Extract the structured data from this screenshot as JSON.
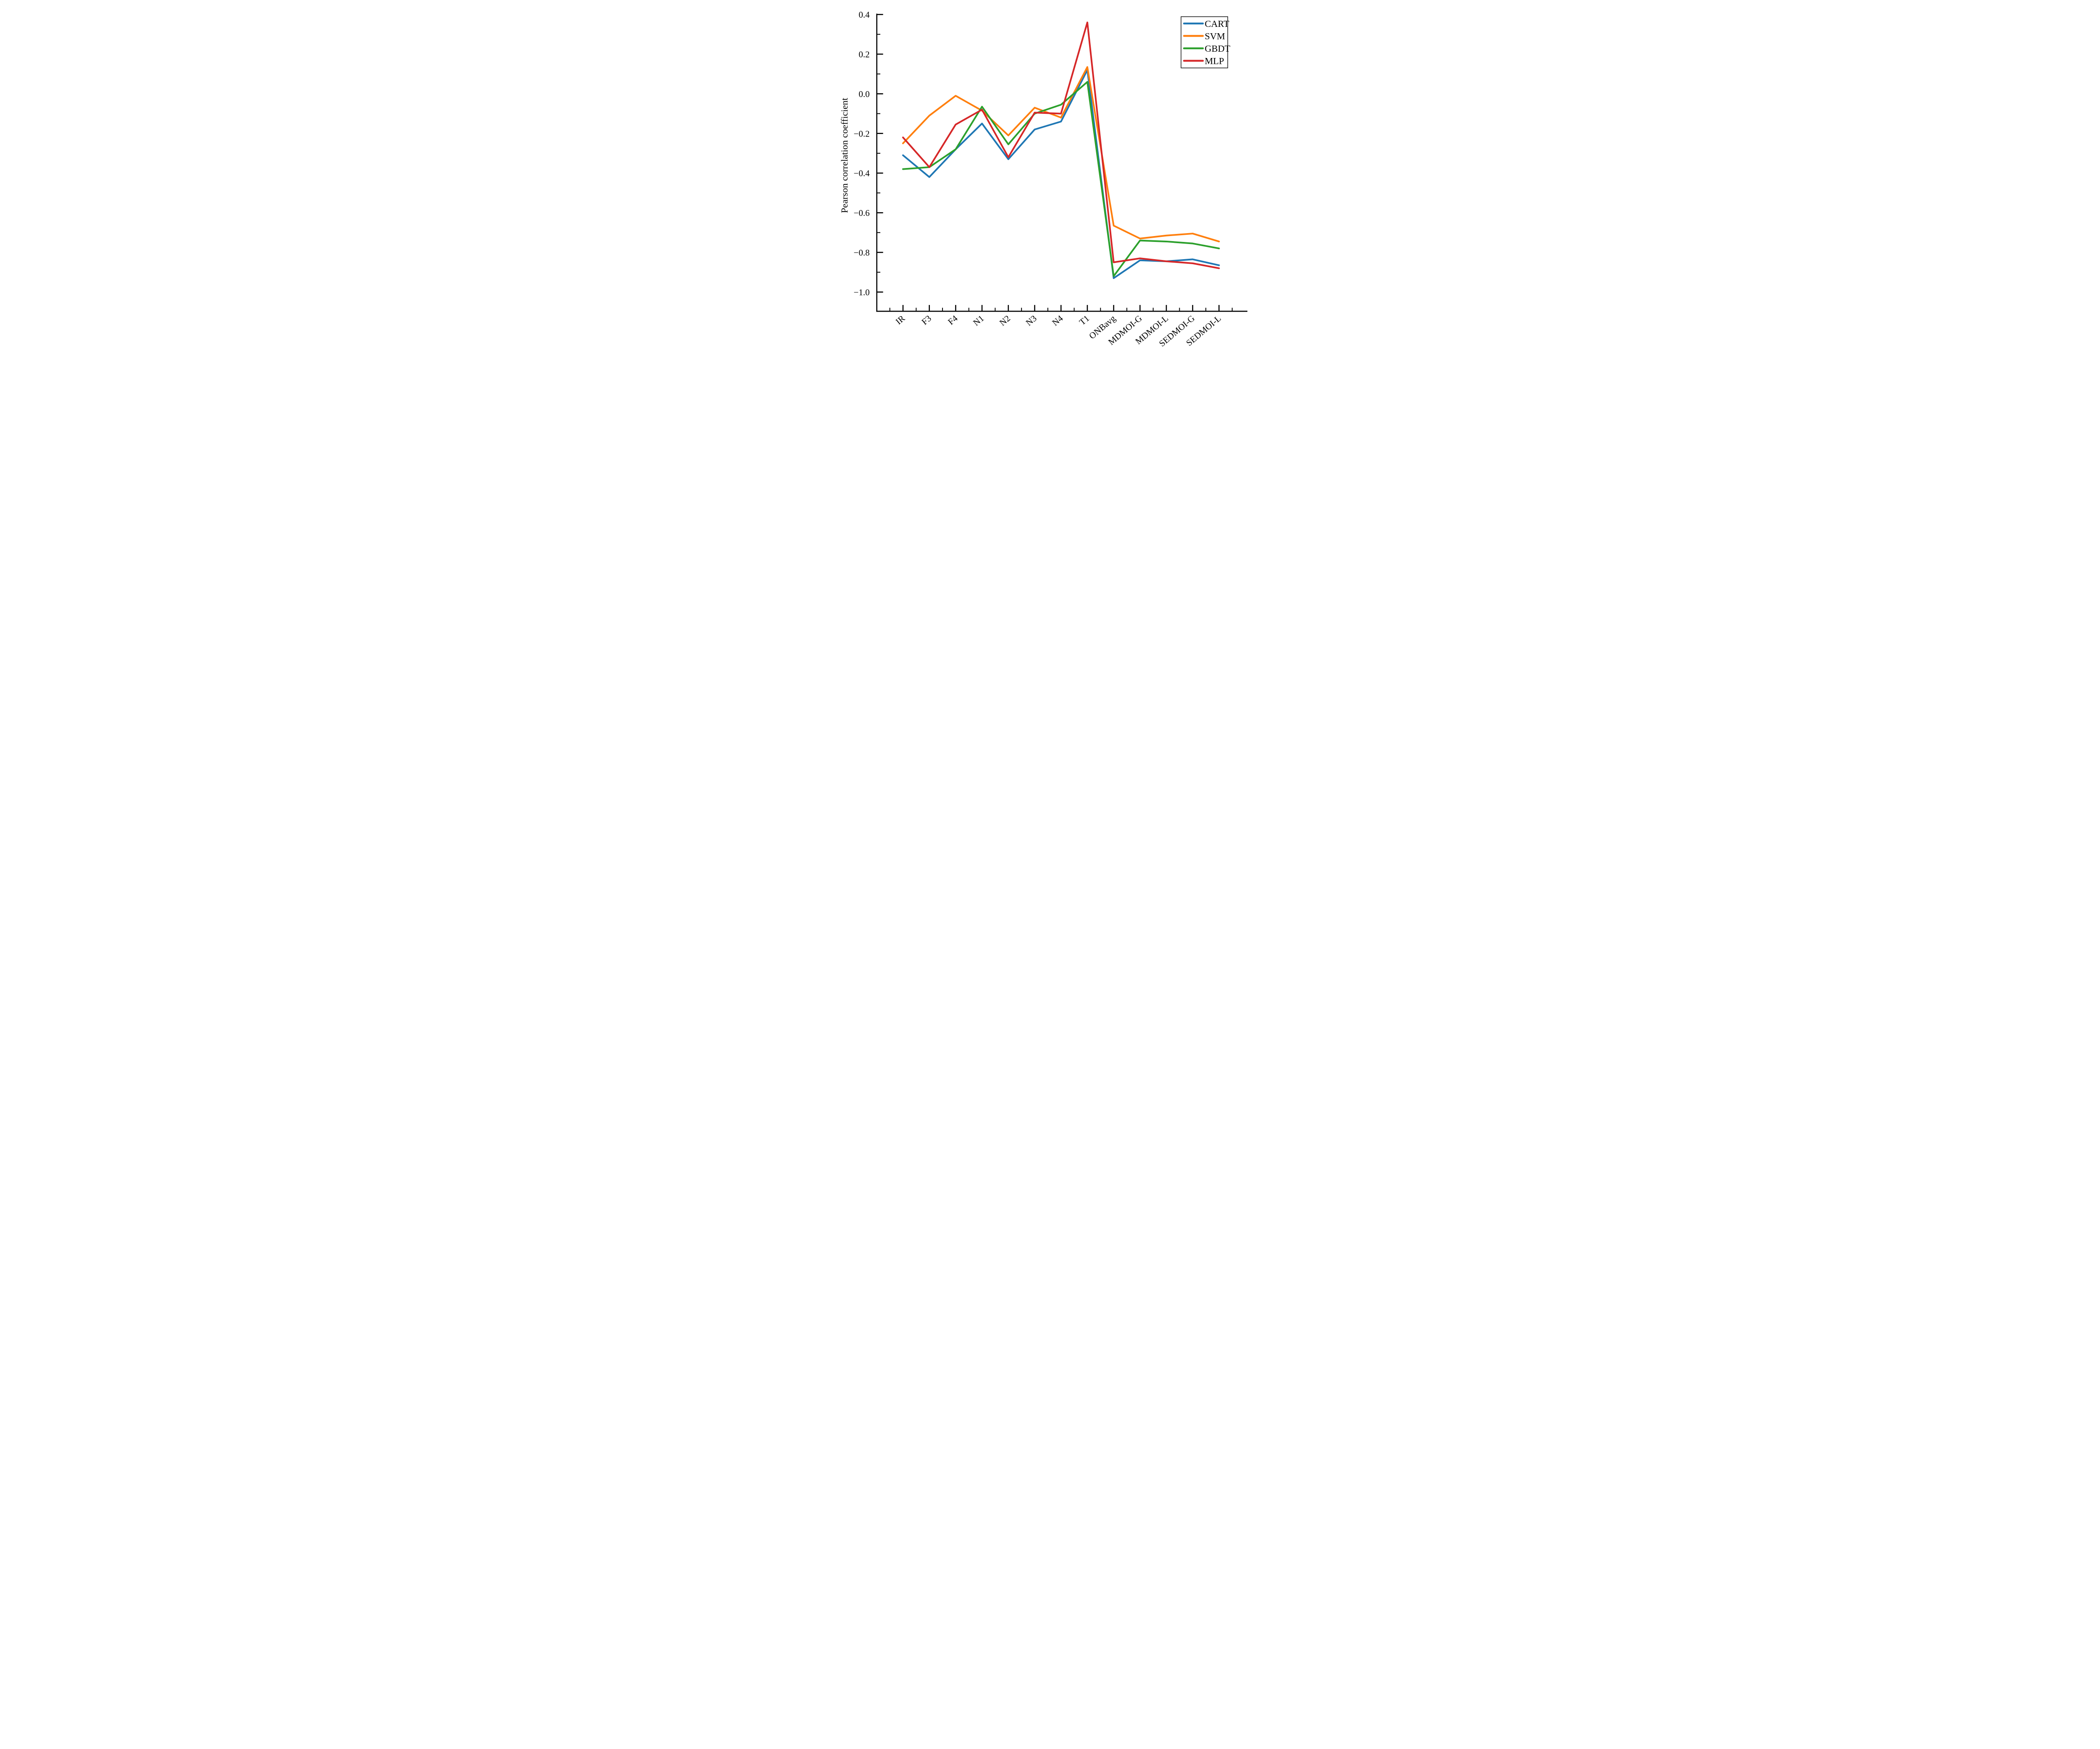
{
  "chart_data": {
    "type": "line",
    "title": "",
    "xlabel": "",
    "ylabel": "Pearson correlation coefficient",
    "grid": false,
    "legend_position": "upper right",
    "x_tick_rotation_deg": 40,
    "ylim": [
      -1.1,
      0.4
    ],
    "categories": [
      "IR",
      "F3",
      "F4",
      "N1",
      "N2",
      "N3",
      "N4",
      "T1",
      "ONBavg",
      "MDMOI-G",
      "MDMOI-L",
      "SEDMOI-G",
      "SEDMOI-L"
    ],
    "y_tick_labels": [
      "0.4",
      "0.2",
      "0.0",
      "−0.2",
      "−0.4",
      "−0.6",
      "−0.8",
      "−1.0"
    ],
    "y_ticks_major": [
      0.4,
      0.2,
      0.0,
      -0.2,
      -0.4,
      -0.6,
      -0.8,
      -1.0
    ],
    "y_ticks_minor": [
      0.3,
      0.1,
      -0.1,
      -0.3,
      -0.5,
      -0.7,
      -0.9
    ],
    "series": [
      {
        "name": "CART",
        "color": "#1f77b4",
        "values": [
          -0.31,
          -0.42,
          -0.28,
          -0.15,
          -0.33,
          -0.18,
          -0.14,
          0.12,
          -0.93,
          -0.84,
          -0.845,
          -0.835,
          -0.865
        ]
      },
      {
        "name": "SVM",
        "color": "#ff7f0e",
        "values": [
          -0.25,
          -0.11,
          -0.01,
          -0.085,
          -0.21,
          -0.07,
          -0.12,
          0.135,
          -0.665,
          -0.73,
          -0.715,
          -0.705,
          -0.745
        ]
      },
      {
        "name": "GBDT",
        "color": "#2ca02c",
        "values": [
          -0.38,
          -0.37,
          -0.28,
          -0.065,
          -0.255,
          -0.1,
          -0.055,
          0.06,
          -0.92,
          -0.74,
          -0.745,
          -0.755,
          -0.78
        ]
      },
      {
        "name": "MLP",
        "color": "#d62728",
        "values": [
          -0.22,
          -0.37,
          -0.155,
          -0.08,
          -0.32,
          -0.095,
          -0.1,
          0.36,
          -0.85,
          -0.83,
          -0.845,
          -0.855,
          -0.88
        ]
      }
    ],
    "legend_entries": [
      "CART",
      "SVM",
      "GBDT",
      "MLP"
    ]
  }
}
